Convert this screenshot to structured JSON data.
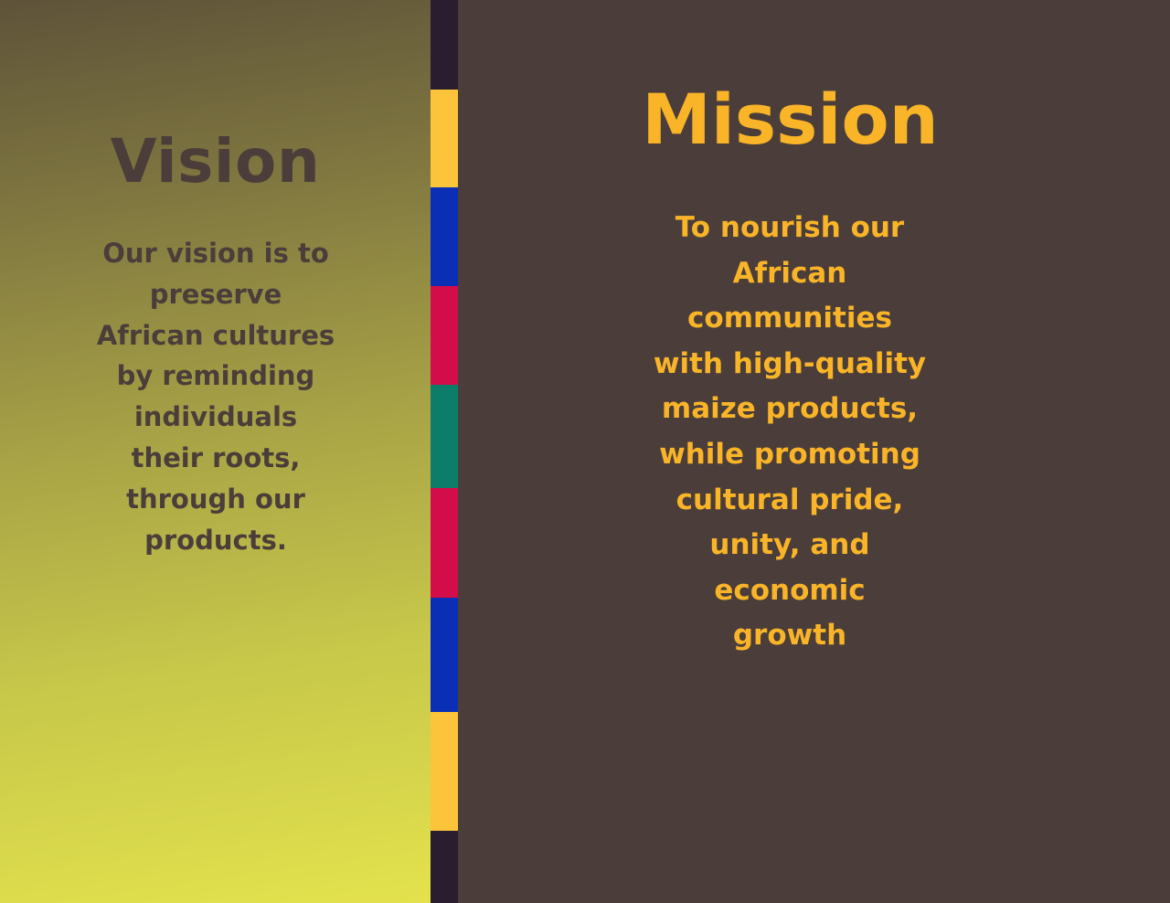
{
  "vision": {
    "title": "Vision",
    "body": "Our vision is to preserve African cultures by reminding individuals their roots, through our products."
  },
  "mission": {
    "title": "Mission",
    "body": "To nourish our African communities with high-quality maize products, while promoting cultural pride, unity, and economic growth"
  },
  "colors": {
    "vision_text": "#4b3e3a",
    "mission_text": "#f9b428",
    "right_background": "#4a3d3a",
    "stripe_base": "#2a1d2f",
    "stripe_bands": [
      "#fcc43a",
      "#0b2fb4",
      "#d20d4a",
      "#0b7d68",
      "#d20d4a",
      "#0b2fb4",
      "#fcc43a"
    ]
  }
}
